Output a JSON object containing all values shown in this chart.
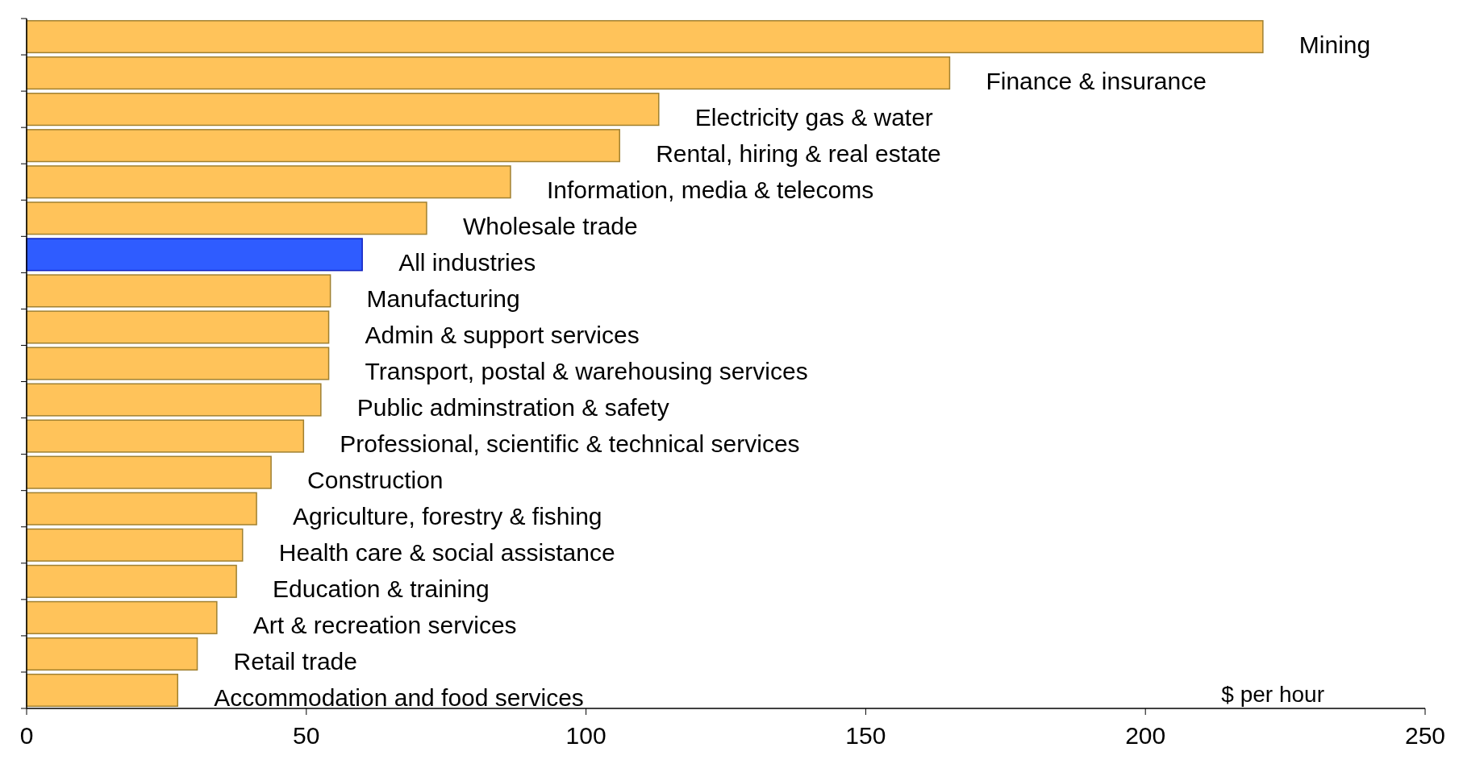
{
  "chart_data": {
    "type": "bar",
    "orientation": "horizontal",
    "xlabel": "$ per hour",
    "categories": [
      "Mining",
      "Finance & insurance",
      "Electricity gas & water",
      "Rental, hiring & real estate",
      "Information, media & telecoms",
      "Wholesale trade",
      "All industries",
      "Manufacturing",
      "Admin & support services",
      "Transport, postal & warehousing services",
      "Public adminstration & safety",
      "Professional, scientific & technical services",
      "Construction",
      "Agriculture, forestry & fishing",
      "Health care & social assistance",
      "Education & training",
      "Art & recreation services",
      "Retail trade",
      "Accommodation and food services"
    ],
    "values": [
      221,
      165,
      113,
      106,
      86.5,
      71.5,
      60,
      54.3,
      54,
      54,
      52.6,
      49.5,
      43.7,
      41.1,
      38.6,
      37.5,
      34,
      30.5,
      27
    ],
    "colors": [
      "#ffc35a",
      "#ffc35a",
      "#ffc35a",
      "#ffc35a",
      "#ffc35a",
      "#ffc35a",
      "#2f5cff",
      "#ffc35a",
      "#ffc35a",
      "#ffc35a",
      "#ffc35a",
      "#ffc35a",
      "#ffc35a",
      "#ffc35a",
      "#ffc35a",
      "#ffc35a",
      "#ffc35a",
      "#ffc35a",
      "#ffc35a"
    ],
    "xlim": [
      0,
      250
    ],
    "xticks": [
      0,
      50,
      100,
      150,
      200,
      250
    ],
    "grid": false
  }
}
